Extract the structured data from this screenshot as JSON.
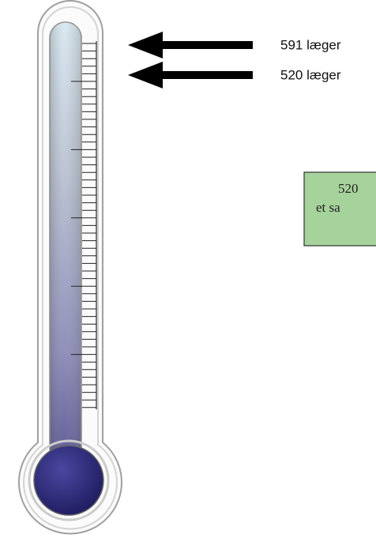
{
  "arrows": [
    {
      "label": "591 læger"
    },
    {
      "label": "520 læger"
    }
  ],
  "note": {
    "lines": [
      "520",
      "et sa"
    ]
  }
}
